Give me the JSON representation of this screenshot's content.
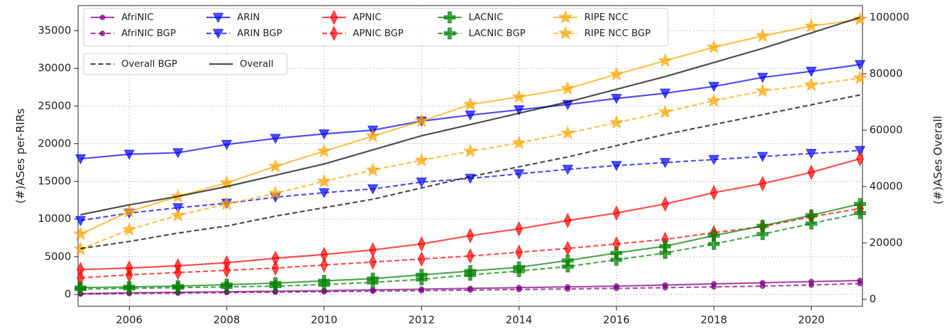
{
  "chart_data": {
    "type": "line",
    "ylabel": "(#)ASes per-RIRs",
    "y2label": "(#)ASes Overall",
    "x": [
      2005,
      2006,
      2007,
      2008,
      2009,
      2010,
      2011,
      2012,
      2013,
      2014,
      2015,
      2016,
      2017,
      2018,
      2019,
      2020,
      2021
    ],
    "xlim": [
      2004.95,
      2021.05
    ],
    "xticks": [
      2006,
      2008,
      2010,
      2012,
      2014,
      2016,
      2018,
      2020
    ],
    "ylim": [
      -1570,
      38330
    ],
    "yticks": [
      0,
      5000,
      10000,
      15000,
      20000,
      25000,
      30000,
      35000
    ],
    "y2lim": [
      -2470,
      104200
    ],
    "y2ticks": [
      0,
      20000,
      40000,
      60000,
      80000,
      100000
    ],
    "grid": true,
    "legend": "upper left",
    "series": [
      {
        "name": "AfriNIC",
        "color": "#800080",
        "marker": "circle",
        "dashed": false,
        "values": [
          100,
          200,
          280,
          350,
          420,
          500,
          600,
          700,
          800,
          900,
          1000,
          1100,
          1250,
          1400,
          1550,
          1700,
          1850
        ]
      },
      {
        "name": "AfriNIC BGP",
        "color": "#800080",
        "marker": "circle",
        "dashed": true,
        "values": [
          50,
          120,
          180,
          250,
          300,
          360,
          430,
          500,
          580,
          650,
          720,
          800,
          900,
          1000,
          1100,
          1250,
          1450
        ]
      },
      {
        "name": "ARIN",
        "color": "#0000ff",
        "marker": "triangle",
        "dashed": false,
        "values": [
          18000,
          18600,
          18800,
          19900,
          20700,
          21300,
          21800,
          23000,
          23800,
          24500,
          25200,
          26000,
          26700,
          27600,
          28800,
          29600,
          30500
        ]
      },
      {
        "name": "ARIN BGP",
        "color": "#0000ff",
        "marker": "triangle",
        "dashed": true,
        "values": [
          9800,
          10800,
          11500,
          12100,
          12900,
          13500,
          14000,
          14900,
          15400,
          16000,
          16600,
          17100,
          17500,
          17900,
          18300,
          18700,
          19100
        ]
      },
      {
        "name": "APNIC",
        "color": "#ff0000",
        "marker": "diamond",
        "dashed": false,
        "values": [
          3300,
          3500,
          3800,
          4200,
          4800,
          5300,
          5900,
          6700,
          7800,
          8700,
          9800,
          10800,
          12000,
          13500,
          14700,
          16200,
          18000
        ]
      },
      {
        "name": "APNIC BGP",
        "color": "#ff0000",
        "marker": "diamond",
        "dashed": true,
        "values": [
          2200,
          2600,
          2900,
          3200,
          3500,
          3900,
          4300,
          4700,
          5100,
          5600,
          6100,
          6700,
          7300,
          8200,
          9000,
          10300,
          11400
        ]
      },
      {
        "name": "LACNIC",
        "color": "#008000",
        "marker": "plus",
        "dashed": false,
        "values": [
          900,
          1000,
          1100,
          1300,
          1500,
          1800,
          2100,
          2600,
          3100,
          3600,
          4500,
          5500,
          6400,
          7800,
          9100,
          10500,
          12000
        ]
      },
      {
        "name": "LACNIC BGP",
        "color": "#008000",
        "marker": "plus",
        "dashed": true,
        "values": [
          700,
          800,
          900,
          1000,
          1100,
          1300,
          1600,
          2000,
          2600,
          3100,
          3700,
          4600,
          5500,
          6700,
          8000,
          9400,
          10800
        ]
      },
      {
        "name": "RIPE NCC",
        "color": "#ffa500",
        "marker": "star",
        "dashed": false,
        "values": [
          8000,
          11000,
          13000,
          14800,
          17000,
          19000,
          21000,
          23000,
          25200,
          26200,
          27300,
          29200,
          31000,
          32800,
          34300,
          35600,
          36500
        ]
      },
      {
        "name": "RIPE NCC BGP",
        "color": "#ffa500",
        "marker": "star",
        "dashed": true,
        "values": [
          6000,
          8600,
          10500,
          12000,
          13400,
          15000,
          16500,
          17800,
          19000,
          20100,
          21400,
          22800,
          24200,
          25700,
          27000,
          27800,
          28700
        ]
      },
      {
        "name": "Overall BGP",
        "color": "#000000",
        "dashed": true,
        "axis": "y2",
        "values": [
          18000,
          20500,
          23500,
          26000,
          29500,
          32500,
          35500,
          39500,
          43500,
          47000,
          50500,
          54500,
          58500,
          62000,
          65500,
          69000,
          72500
        ]
      },
      {
        "name": "Overall",
        "color": "#000000",
        "dashed": false,
        "axis": "y2",
        "values": [
          30000,
          33500,
          36500,
          40000,
          44000,
          48000,
          53000,
          58000,
          62000,
          66000,
          70000,
          74500,
          79000,
          84000,
          89000,
          94500,
          100000
        ]
      }
    ]
  }
}
